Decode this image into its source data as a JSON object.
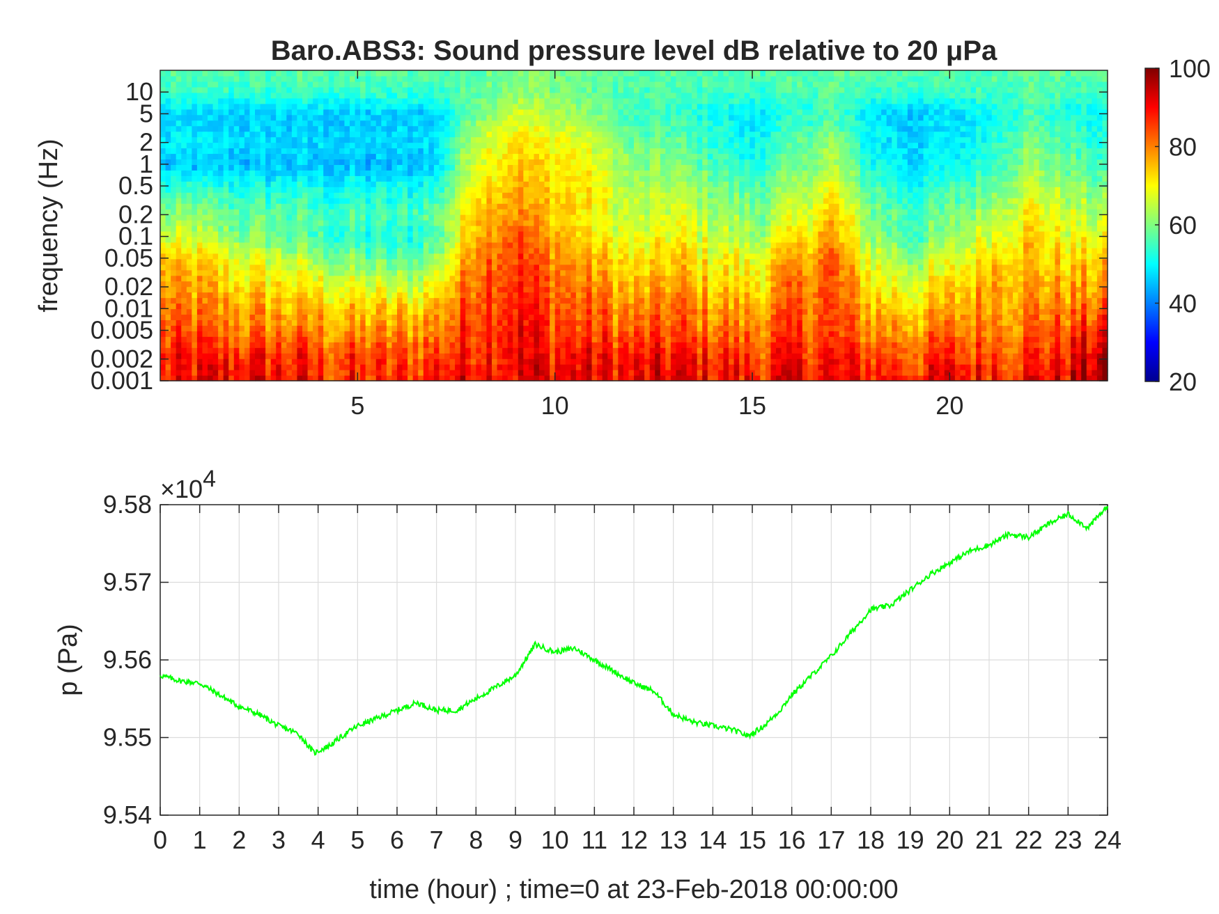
{
  "chart_data": [
    {
      "type": "heatmap",
      "title": "Baro.ABS3: Sound pressure level dB relative to 20 μPa",
      "xlabel": "",
      "ylabel": "frequency (Hz)",
      "xlim": [
        0,
        24
      ],
      "x_ticks": [
        5,
        10,
        15,
        20
      ],
      "y_scale": "log",
      "ylim": [
        0.001,
        20
      ],
      "y_ticks": [
        "0.001",
        "0.002",
        "0.005",
        "0.01",
        "0.02",
        "0.05",
        "0.1",
        "0.2",
        "0.5",
        "1",
        "2",
        "5",
        "10"
      ],
      "colorbar": {
        "min": 20,
        "max": 100,
        "ticks": [
          20,
          40,
          60,
          80,
          100
        ],
        "colormap": "jet"
      },
      "grid": false,
      "bands": [
        {
          "freq": 0.001,
          "level": [
            85,
            90,
            92,
            90,
            87,
            86,
            84,
            90,
            92,
            91,
            90,
            91,
            90,
            92,
            90,
            88,
            90,
            90,
            90,
            88,
            90,
            90,
            90,
            92,
            100
          ]
        },
        {
          "freq": 0.002,
          "level": [
            86,
            88,
            88,
            88,
            86,
            85,
            84,
            86,
            90,
            92,
            90,
            90,
            88,
            90,
            88,
            86,
            88,
            88,
            86,
            85,
            86,
            87,
            87,
            90,
            95
          ]
        },
        {
          "freq": 0.005,
          "level": [
            83,
            82,
            80,
            80,
            79,
            78,
            78,
            80,
            88,
            90,
            86,
            84,
            82,
            84,
            82,
            80,
            84,
            84,
            80,
            78,
            80,
            82,
            82,
            84,
            88
          ]
        },
        {
          "freq": 0.01,
          "level": [
            80,
            79,
            77,
            76,
            75,
            73,
            73,
            76,
            86,
            89,
            84,
            82,
            78,
            81,
            78,
            76,
            82,
            84,
            76,
            73,
            76,
            80,
            80,
            80,
            82
          ]
        },
        {
          "freq": 0.02,
          "level": [
            77,
            76,
            73,
            72,
            70,
            67,
            66,
            70,
            84,
            88,
            82,
            80,
            74,
            78,
            74,
            72,
            80,
            84,
            72,
            68,
            72,
            78,
            78,
            76,
            78
          ]
        },
        {
          "freq": 0.05,
          "level": [
            74,
            72,
            68,
            66,
            62,
            58,
            56,
            62,
            82,
            86,
            80,
            76,
            70,
            74,
            70,
            68,
            76,
            82,
            68,
            62,
            66,
            74,
            76,
            72,
            74
          ]
        },
        {
          "freq": 0.1,
          "level": [
            66,
            64,
            60,
            58,
            55,
            52,
            51,
            56,
            78,
            84,
            76,
            72,
            66,
            70,
            66,
            62,
            70,
            78,
            62,
            56,
            60,
            68,
            74,
            68,
            68
          ]
        },
        {
          "freq": 0.2,
          "level": [
            60,
            60,
            58,
            57,
            56,
            55,
            55,
            58,
            76,
            80,
            74,
            70,
            64,
            68,
            64,
            60,
            66,
            74,
            60,
            56,
            58,
            64,
            72,
            66,
            64
          ]
        },
        {
          "freq": 0.5,
          "level": [
            53,
            52,
            52,
            51,
            51,
            50,
            50,
            52,
            72,
            76,
            74,
            70,
            62,
            64,
            60,
            56,
            62,
            68,
            56,
            52,
            54,
            58,
            66,
            62,
            58
          ]
        },
        {
          "freq": 1,
          "level": [
            46,
            45,
            45,
            45,
            45,
            44,
            44,
            46,
            68,
            74,
            72,
            68,
            60,
            60,
            56,
            52,
            58,
            64,
            52,
            48,
            50,
            54,
            62,
            58,
            54
          ]
        },
        {
          "freq": 2,
          "level": [
            49,
            48,
            48,
            47,
            47,
            47,
            47,
            48,
            66,
            72,
            70,
            66,
            58,
            58,
            54,
            50,
            56,
            62,
            50,
            47,
            48,
            52,
            60,
            56,
            52
          ]
        },
        {
          "freq": 5,
          "level": [
            47,
            46,
            46,
            46,
            46,
            46,
            46,
            47,
            60,
            66,
            64,
            60,
            54,
            54,
            52,
            48,
            52,
            56,
            48,
            46,
            47,
            50,
            56,
            52,
            50
          ]
        },
        {
          "freq": 10,
          "level": [
            54,
            54,
            54,
            54,
            54,
            54,
            54,
            54,
            58,
            62,
            60,
            58,
            56,
            56,
            55,
            54,
            55,
            57,
            54,
            54,
            54,
            55,
            57,
            55,
            54
          ]
        },
        {
          "freq": 20,
          "level": [
            57,
            57,
            57,
            57,
            57,
            57,
            57,
            57,
            58,
            60,
            59,
            58,
            57,
            57,
            57,
            57,
            57,
            58,
            57,
            57,
            57,
            57,
            58,
            57,
            57
          ]
        }
      ]
    },
    {
      "type": "line",
      "title": "",
      "xlabel": "time (hour) ; time=0 at 23-Feb-2018 00:00:00",
      "ylabel": "p (Pa)",
      "y_multiplier_base": "×10",
      "y_multiplier_exp": "4",
      "xlim": [
        0,
        24
      ],
      "ylim": [
        9.54,
        9.58
      ],
      "x_ticks": [
        0,
        1,
        2,
        3,
        4,
        5,
        6,
        7,
        8,
        9,
        10,
        11,
        12,
        13,
        14,
        15,
        16,
        17,
        18,
        19,
        20,
        21,
        22,
        23,
        24
      ],
      "y_ticks": [
        "9.54",
        "9.55",
        "9.56",
        "9.57",
        "9.58"
      ],
      "grid": true,
      "color": "#00ff00",
      "series": [
        {
          "x": [
            0,
            0.5,
            1,
            1.5,
            2,
            2.5,
            3,
            3.5,
            3.9,
            4.3,
            4.7,
            5,
            5.5,
            6,
            6.5,
            7,
            7.5,
            8,
            8.5,
            9,
            9.5,
            10,
            10.5,
            11,
            11.5,
            12,
            12.5,
            13,
            13.5,
            14,
            14.5,
            14.9,
            15.3,
            15.7,
            16,
            16.5,
            17,
            17.5,
            18,
            18.5,
            19,
            19.5,
            20,
            20.5,
            21,
            21.5,
            22,
            22.5,
            23,
            23.5,
            24
          ],
          "y": [
            9.558,
            9.5573,
            9.557,
            9.5555,
            9.554,
            9.553,
            9.5515,
            9.5505,
            9.548,
            9.549,
            9.5505,
            9.5515,
            9.5525,
            9.5535,
            9.5545,
            9.5535,
            9.5535,
            9.555,
            9.5565,
            9.558,
            9.562,
            9.561,
            9.5615,
            9.56,
            9.5585,
            9.557,
            9.556,
            9.553,
            9.552,
            9.5515,
            9.551,
            9.5502,
            9.5515,
            9.5535,
            9.5555,
            9.558,
            9.5605,
            9.5635,
            9.5665,
            9.567,
            9.569,
            9.571,
            9.5725,
            9.574,
            9.5748,
            9.5762,
            9.5758,
            9.5775,
            9.5788,
            9.577,
            9.5798
          ]
        }
      ]
    }
  ]
}
